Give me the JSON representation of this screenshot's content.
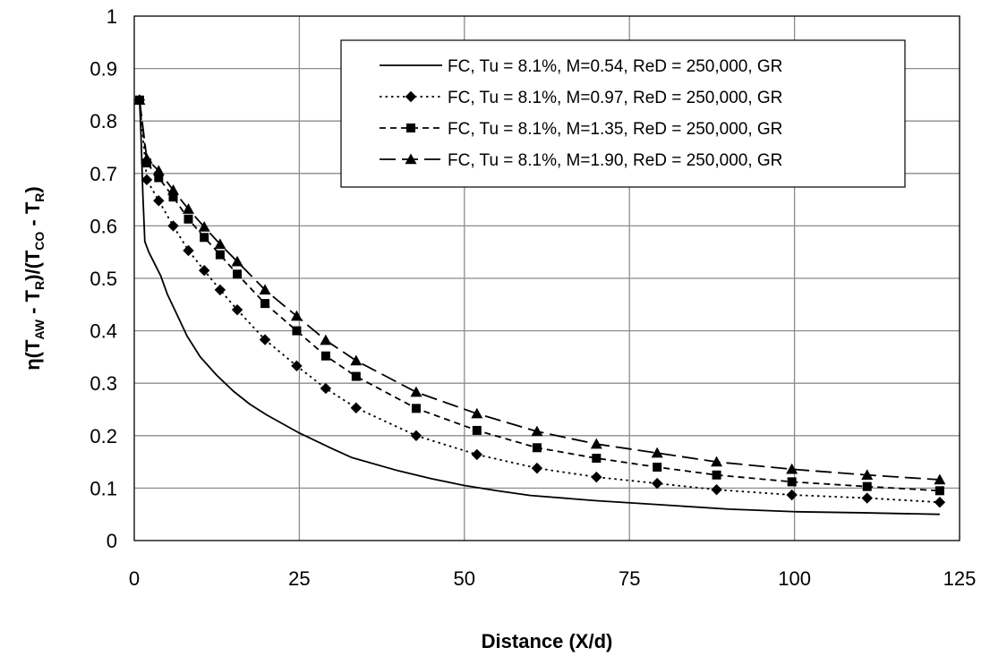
{
  "chart_data": {
    "type": "line",
    "xlabel": "Distance (X/d)",
    "ylabel": {
      "parts": [
        {
          "text": "η(T",
          "sub": false
        },
        {
          "text": "AW",
          "sub": true
        },
        {
          "text": " - T",
          "sub": false
        },
        {
          "text": "R",
          "sub": true
        },
        {
          "text": ")/(T",
          "sub": false
        },
        {
          "text": "CO",
          "sub": true
        },
        {
          "text": " - T",
          "sub": false
        },
        {
          "text": "R",
          "sub": true
        },
        {
          "text": ")",
          "sub": false
        }
      ]
    },
    "xlim": [
      0,
      125
    ],
    "ylim": [
      0,
      1
    ],
    "xticks": [
      0,
      25,
      50,
      75,
      100,
      125
    ],
    "yticks": [
      0,
      0.1,
      0.2,
      0.3,
      0.4,
      0.5,
      0.6,
      0.7,
      0.8,
      0.9,
      1
    ],
    "ytick_labels": [
      "0",
      "0.1",
      "0.2",
      "0.3",
      "0.4",
      "0.5",
      "0.6",
      "0.7",
      "0.8",
      "0.9",
      "1"
    ],
    "grid": true,
    "legend_position": "top-right",
    "series": [
      {
        "name": "FC, Tu = 8.1%, M=0.54, ReD = 250,000, GR",
        "color": "#000000",
        "dash": "solid",
        "marker": "none",
        "x": [
          0.8,
          1.0,
          1.3,
          1.6,
          2.2,
          3.0,
          4.0,
          5.0,
          6.5,
          8.0,
          10.0,
          12.5,
          15.0,
          17.5,
          20.0,
          25.0,
          30.0,
          33.0,
          40.0,
          45.0,
          50.0,
          55.0,
          60.0,
          70.0,
          80.0,
          90.0,
          100.0,
          110.0,
          122.0
        ],
        "y": [
          0.84,
          0.78,
          0.66,
          0.57,
          0.55,
          0.53,
          0.505,
          0.47,
          0.43,
          0.39,
          0.35,
          0.315,
          0.285,
          0.26,
          0.24,
          0.205,
          0.175,
          0.158,
          0.133,
          0.118,
          0.105,
          0.095,
          0.086,
          0.076,
          0.068,
          0.06,
          0.055,
          0.053,
          0.05
        ]
      },
      {
        "name": "FC, Tu = 8.1%, M=0.97, ReD = 250,000, GR",
        "color": "#000000",
        "dash": "dot",
        "marker": "diamond",
        "x": [
          0.8,
          1.9,
          3.7,
          5.9,
          8.2,
          10.6,
          13.0,
          15.6,
          19.8,
          24.6,
          29.0,
          33.6,
          42.7,
          51.9,
          61.0,
          70.0,
          79.2,
          88.2,
          99.6,
          111.0,
          122.0
        ],
        "y": [
          0.84,
          0.688,
          0.648,
          0.6,
          0.553,
          0.515,
          0.478,
          0.44,
          0.383,
          0.333,
          0.29,
          0.253,
          0.2,
          0.164,
          0.138,
          0.121,
          0.109,
          0.097,
          0.087,
          0.081,
          0.073
        ]
      },
      {
        "name": "FC, Tu = 8.1%, M=1.35, ReD = 250,000, GR",
        "color": "#000000",
        "dash": "short-dash",
        "marker": "square",
        "x": [
          0.8,
          1.9,
          3.7,
          5.9,
          8.2,
          10.6,
          13.0,
          15.6,
          19.8,
          24.6,
          29.0,
          33.6,
          42.7,
          51.9,
          61.0,
          70.0,
          79.2,
          88.2,
          99.6,
          111.0,
          122.0
        ],
        "y": [
          0.84,
          0.72,
          0.692,
          0.655,
          0.613,
          0.578,
          0.545,
          0.508,
          0.452,
          0.4,
          0.352,
          0.313,
          0.252,
          0.21,
          0.177,
          0.157,
          0.14,
          0.125,
          0.112,
          0.103,
          0.095
        ]
      },
      {
        "name": "FC, Tu = 8.1%, M=1.90, ReD = 250,000, GR",
        "color": "#000000",
        "dash": "long-dash",
        "marker": "triangle",
        "x": [
          0.8,
          1.9,
          3.7,
          5.9,
          8.2,
          10.6,
          13.0,
          15.6,
          19.8,
          24.6,
          29.0,
          33.6,
          42.7,
          51.9,
          61.0,
          70.0,
          79.2,
          88.2,
          99.6,
          111.0,
          122.0
        ],
        "y": [
          0.84,
          0.728,
          0.705,
          0.668,
          0.632,
          0.598,
          0.565,
          0.532,
          0.478,
          0.428,
          0.382,
          0.343,
          0.283,
          0.242,
          0.208,
          0.184,
          0.167,
          0.15,
          0.136,
          0.125,
          0.116
        ]
      }
    ]
  }
}
